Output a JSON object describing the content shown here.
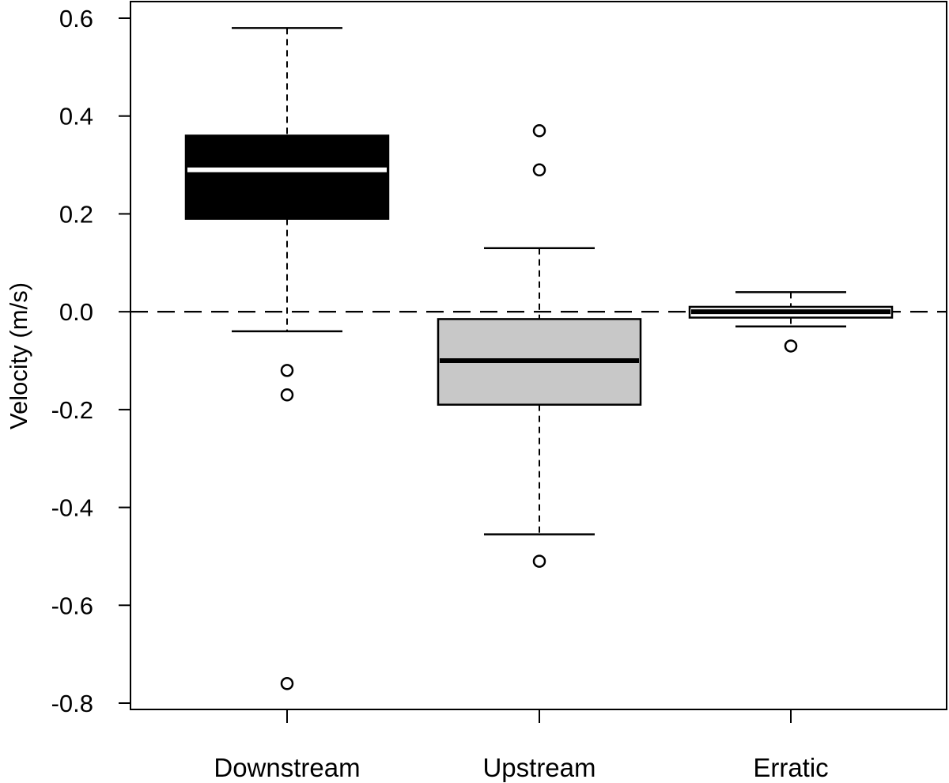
{
  "chart_data": {
    "type": "boxplot",
    "ylabel": "Velocity (m/s)",
    "xlabel": "",
    "ylim": [
      -0.81,
      0.625
    ],
    "yticks": [
      0.6,
      0.4,
      0.2,
      0.0,
      -0.2,
      -0.4,
      -0.6,
      -0.8
    ],
    "ytick_labels": [
      "0.6",
      "0.4",
      "0.2",
      "0.0",
      "-0.2",
      "-0.4",
      "-0.6",
      "-0.8"
    ],
    "reference_line": 0.0,
    "categories": [
      "Downstream",
      "Upstream",
      "Erratic"
    ],
    "boxes": [
      {
        "name": "Downstream",
        "whisker_low": -0.04,
        "q1": 0.19,
        "median": 0.29,
        "q3": 0.36,
        "whisker_high": 0.58,
        "outliers": [
          -0.12,
          -0.17,
          -0.76
        ],
        "fill": "#000000",
        "median_color": "#ffffff"
      },
      {
        "name": "Upstream",
        "whisker_low": -0.455,
        "q1": -0.19,
        "median": -0.1,
        "q3": -0.015,
        "whisker_high": 0.13,
        "outliers": [
          0.37,
          0.29,
          -0.51
        ],
        "fill": "#c8c8c8",
        "median_color": "#000000"
      },
      {
        "name": "Erratic",
        "whisker_low": -0.03,
        "q1": -0.012,
        "median": 0.0,
        "q3": 0.01,
        "whisker_high": 0.04,
        "outliers": [
          -0.07
        ],
        "fill": "#ffffff",
        "median_color": "#000000"
      }
    ]
  }
}
